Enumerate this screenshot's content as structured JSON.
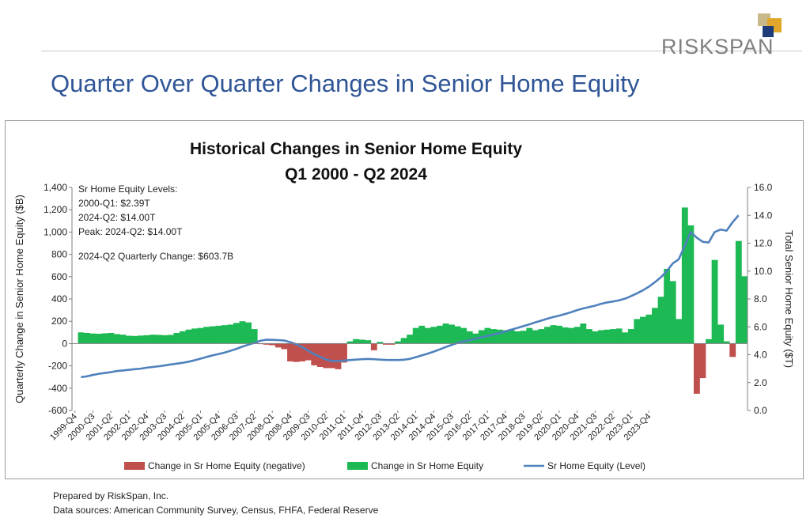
{
  "slide": {
    "title": "Quarter Over Quarter Changes in Senior Home Equity",
    "logo_text": "RISKSPAN",
    "footnote_prepared": "Prepared by RiskSpan, Inc.",
    "footnote_sources": "Data sources: American Community Survey, Census, FHFA, Federal Reserve"
  },
  "colors": {
    "positive": "#1db954",
    "negative": "#c0504d",
    "line": "#4f81bd",
    "title": "#2f5597",
    "logo": [
      "#c9b98a",
      "#e0a72a",
      "#1f3c7a"
    ]
  },
  "chart_data": {
    "type": "bar",
    "title": "Historical Changes in Senior Home Equity",
    "subtitle": "Q1 2000 - Q2 2024",
    "ylabel": "Quarterly Change in Senior Home Equity ($B)",
    "y2label": "Total Senior Home Equity ($T)",
    "ylim": [
      -600,
      1400
    ],
    "y_ticks": [
      -600,
      -400,
      -200,
      0,
      200,
      400,
      600,
      800,
      1000,
      1200,
      1400
    ],
    "y_tick_labels": [
      "-600",
      "-400",
      "-200",
      "0",
      "200",
      "400",
      "600",
      "800",
      "1,000",
      "1,200",
      "1,400"
    ],
    "y2lim": [
      0,
      16
    ],
    "y2_ticks": [
      0,
      2,
      4,
      6,
      8,
      10,
      12,
      14,
      16
    ],
    "y2_tick_labels": [
      "0.0",
      "2.0",
      "4.0",
      "6.0",
      "8.0",
      "10.0",
      "12.0",
      "14.0",
      "16.0"
    ],
    "x_tick_labels": [
      "1999-Q4",
      "2000-Q3",
      "2001-Q2",
      "2002-Q1",
      "2002-Q4",
      "2003-Q3",
      "2004-Q2",
      "2005-Q1",
      "2005-Q4",
      "2006-Q3",
      "2007-Q2",
      "2008-Q1",
      "2008-Q4",
      "2009-Q3",
      "2010-Q2",
      "2011-Q1",
      "2011-Q4",
      "2012-Q3",
      "2013-Q2",
      "2014-Q1",
      "2014-Q4",
      "2015-Q3",
      "2016-Q2",
      "2017-Q1",
      "2017-Q4",
      "2018-Q3",
      "2019-Q2",
      "2020-Q1",
      "2020-Q4",
      "2021-Q3",
      "2022-Q2",
      "2023-Q1",
      "2023-Q4"
    ],
    "x_first_quarter": "2000-Q1",
    "grid": false,
    "legend_position": "bottom",
    "legend": [
      "Change in Sr Home Equity (negative)",
      "Change in Sr Home Equity",
      "Sr Home Equity (Level)"
    ],
    "annotations": [
      "Sr Home Equity Levels:",
      "2000-Q1: $2.39T",
      "2024-Q2: $14.00T",
      "Peak: 2024-Q2: $14.00T",
      "2024-Q2 Quarterly Change: $603.7B"
    ],
    "series": [
      {
        "name": "Change in Sr Home Equity",
        "axis": "left",
        "values": [
          100,
          95,
          90,
          88,
          92,
          95,
          85,
          80,
          70,
          68,
          72,
          75,
          80,
          78,
          75,
          78,
          95,
          110,
          125,
          135,
          140,
          150,
          155,
          160,
          165,
          170,
          185,
          200,
          190,
          130,
          -5,
          -10,
          -15,
          -35,
          -50,
          -160,
          -165,
          -160,
          -150,
          -195,
          -210,
          -220,
          -220,
          -230,
          -170,
          20,
          40,
          35,
          30,
          -60,
          15,
          -10,
          -10,
          20,
          50,
          80,
          140,
          160,
          140,
          150,
          160,
          180,
          170,
          155,
          140,
          110,
          90,
          120,
          140,
          130,
          125,
          120,
          120,
          110,
          115,
          140,
          120,
          130,
          150,
          165,
          160,
          145,
          140,
          150,
          180,
          130,
          110,
          120,
          125,
          130,
          135,
          100,
          130,
          220,
          240,
          260,
          320,
          420,
          670,
          560,
          220,
          1220,
          1060,
          -450,
          -310,
          40,
          750,
          170,
          20,
          -120,
          920,
          604
        ]
      },
      {
        "name": "Sr Home Equity (Level)",
        "axis": "right",
        "values": [
          2.39,
          2.45,
          2.55,
          2.63,
          2.69,
          2.75,
          2.83,
          2.87,
          2.92,
          2.96,
          3.0,
          3.07,
          3.12,
          3.17,
          3.23,
          3.3,
          3.36,
          3.42,
          3.5,
          3.6,
          3.72,
          3.84,
          3.95,
          4.05,
          4.15,
          4.28,
          4.42,
          4.58,
          4.72,
          4.85,
          5.0,
          5.08,
          5.07,
          5.05,
          5.02,
          4.9,
          4.75,
          4.55,
          4.3,
          4.05,
          3.85,
          3.65,
          3.55,
          3.55,
          3.58,
          3.62,
          3.65,
          3.68,
          3.7,
          3.68,
          3.65,
          3.63,
          3.62,
          3.62,
          3.64,
          3.7,
          3.82,
          3.95,
          4.08,
          4.22,
          4.38,
          4.55,
          4.7,
          4.85,
          4.95,
          5.05,
          5.15,
          5.25,
          5.35,
          5.45,
          5.55,
          5.68,
          5.8,
          5.92,
          6.05,
          6.18,
          6.32,
          6.45,
          6.58,
          6.7,
          6.8,
          6.92,
          7.05,
          7.2,
          7.32,
          7.42,
          7.52,
          7.65,
          7.75,
          7.82,
          7.9,
          8.02,
          8.2,
          8.4,
          8.62,
          8.88,
          9.2,
          9.55,
          10.0,
          10.55,
          10.85,
          11.8,
          12.8,
          12.4,
          12.1,
          12.05,
          12.8,
          12.98,
          12.9,
          13.5,
          14.0
        ]
      }
    ]
  }
}
